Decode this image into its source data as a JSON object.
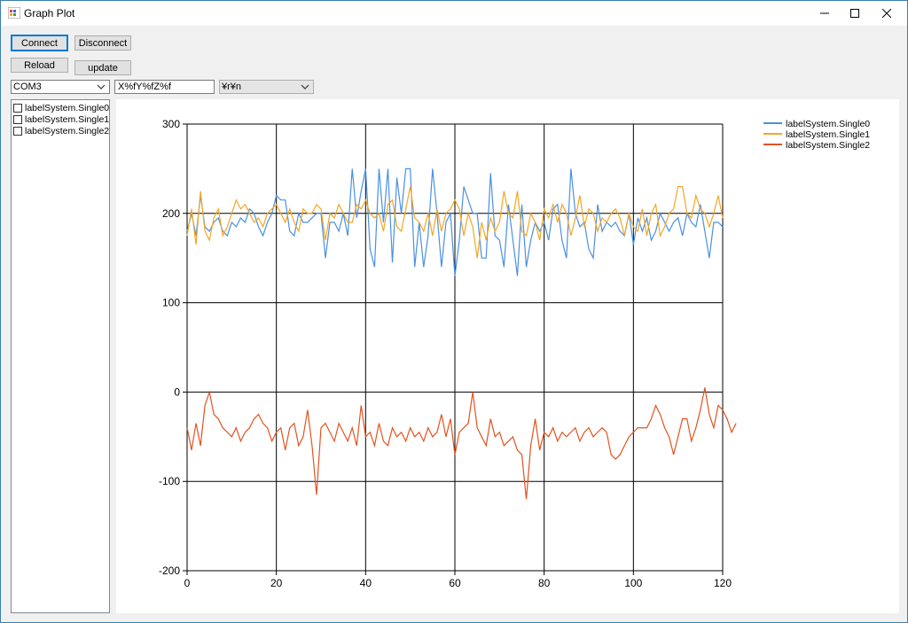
{
  "window": {
    "title": "Graph Plot"
  },
  "toolbar": {
    "connect_label": "Connect",
    "disconnect_label": "Disconnect",
    "reload_label": "Reload",
    "update_label": "update",
    "port_value": "COM3",
    "format_value": "X%fY%fZ%f",
    "delimiter_value": "¥r¥n"
  },
  "channels": [
    {
      "label": "labelSystem.Single0",
      "checked": false
    },
    {
      "label": "labelSystem.Single1",
      "checked": false
    },
    {
      "label": "labelSystem.Single2",
      "checked": false
    }
  ],
  "chart_data": {
    "type": "line",
    "title": "",
    "xlabel": "",
    "ylabel": "",
    "xlim": [
      0,
      120
    ],
    "ylim": [
      -200,
      300
    ],
    "xticks": [
      0,
      20,
      40,
      60,
      80,
      100,
      120
    ],
    "yticks": [
      -200,
      -100,
      0,
      100,
      200,
      300
    ],
    "grid": true,
    "legend_position": "top-right",
    "series": [
      {
        "name": "labelSystem.Single0",
        "color": "#4a90e2",
        "values": [
          180,
          200,
          175,
          220,
          185,
          180,
          190,
          195,
          180,
          175,
          190,
          185,
          195,
          190,
          205,
          200,
          185,
          175,
          190,
          200,
          220,
          215,
          215,
          180,
          175,
          200,
          190,
          190,
          195,
          200,
          200,
          150,
          190,
          190,
          180,
          200,
          175,
          250,
          195,
          225,
          250,
          160,
          140,
          250,
          190,
          250,
          145,
          240,
          200,
          250,
          250,
          140,
          190,
          140,
          175,
          250,
          200,
          140,
          190,
          200,
          130,
          170,
          230,
          215,
          200,
          200,
          150,
          150,
          245,
          175,
          170,
          140,
          210,
          170,
          130,
          210,
          140,
          170,
          190,
          180,
          190,
          170,
          205,
          210,
          170,
          150,
          250,
          200,
          185,
          190,
          160,
          150,
          210,
          180,
          190,
          185,
          190,
          180,
          175,
          200,
          165,
          195,
          180,
          195,
          170,
          180,
          200,
          190,
          180,
          190,
          195,
          175,
          200,
          190,
          185,
          210,
          180,
          150,
          190,
          190,
          185
        ]
      },
      {
        "name": "labelSystem.Single1",
        "color": "#f5a623",
        "values": [
          175,
          205,
          165,
          225,
          180,
          170,
          195,
          205,
          175,
          185,
          200,
          215,
          205,
          210,
          200,
          190,
          195,
          185,
          200,
          205,
          210,
          200,
          190,
          205,
          190,
          180,
          205,
          200,
          200,
          210,
          205,
          170,
          200,
          195,
          210,
          200,
          190,
          190,
          210,
          205,
          215,
          200,
          195,
          200,
          180,
          210,
          215,
          185,
          180,
          205,
          230,
          195,
          190,
          180,
          200,
          175,
          205,
          180,
          200,
          205,
          215,
          205,
          175,
          200,
          185,
          150,
          190,
          170,
          195,
          180,
          190,
          225,
          200,
          195,
          225,
          180,
          175,
          200,
          190,
          170,
          205,
          195,
          210,
          190,
          210,
          200,
          175,
          195,
          220,
          185,
          205,
          200,
          180,
          195,
          190,
          200,
          205,
          195,
          175,
          200,
          185,
          180,
          205,
          175,
          200,
          210,
          175,
          185,
          200,
          205,
          230,
          230,
          200,
          195,
          220,
          205,
          200,
          185,
          200,
          220,
          195
        ]
      },
      {
        "name": "labelSystem.Single2",
        "color": "#e2531f",
        "values": [
          -40,
          -65,
          -35,
          -60,
          -15,
          0,
          -25,
          -30,
          -40,
          -45,
          -50,
          -40,
          -55,
          -45,
          -40,
          -30,
          -25,
          -35,
          -40,
          -55,
          -45,
          -40,
          -65,
          -40,
          -35,
          -60,
          -50,
          -20,
          -60,
          -115,
          -40,
          -35,
          -45,
          -55,
          -35,
          -45,
          -55,
          -40,
          -60,
          -15,
          -50,
          -45,
          -60,
          -35,
          -55,
          -60,
          -40,
          -50,
          -45,
          -55,
          -40,
          -50,
          -45,
          -55,
          -40,
          -50,
          -45,
          -25,
          -50,
          -30,
          -70,
          -45,
          -40,
          -35,
          0,
          -40,
          -50,
          -60,
          -30,
          -50,
          -45,
          -60,
          -55,
          -50,
          -65,
          -70,
          -120,
          -60,
          -30,
          -65,
          -45,
          -50,
          -40,
          -55,
          -45,
          -50,
          -45,
          -40,
          -55,
          -45,
          -40,
          -50,
          -45,
          -40,
          -45,
          -70,
          -75,
          -70,
          -60,
          -50,
          -45,
          -40,
          -40,
          -40,
          -30,
          -15,
          -25,
          -40,
          -50,
          -70,
          -50,
          -30,
          -30,
          -55,
          -40,
          -20,
          5,
          -25,
          -40,
          -15,
          -20,
          -30,
          -45,
          -35
        ]
      }
    ]
  }
}
